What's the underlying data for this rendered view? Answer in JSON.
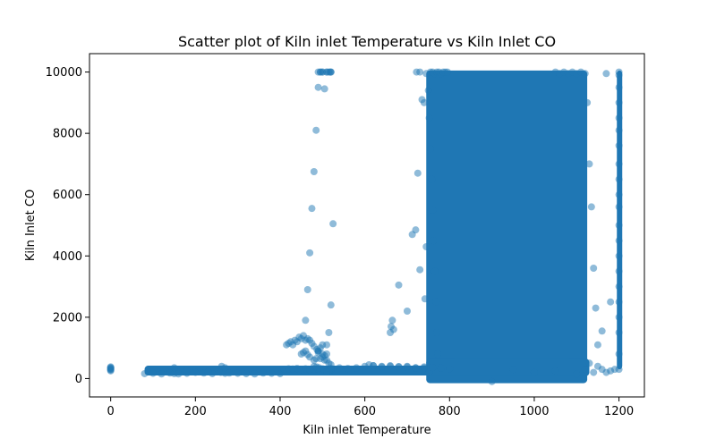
{
  "chart_data": {
    "type": "scatter",
    "title": "Scatter plot of Kiln inlet Temperature vs Kiln Inlet CO",
    "xlabel": "Kiln inlet Temperature",
    "ylabel": "Kiln Inlet CO",
    "xlim": [
      -50,
      1260
    ],
    "ylim": [
      -600,
      10600
    ],
    "xticks": [
      0,
      200,
      400,
      600,
      800,
      1000,
      1200
    ],
    "yticks": [
      0,
      2000,
      4000,
      6000,
      8000,
      10000
    ],
    "xtick_labels": [
      "0",
      "200",
      "400",
      "600",
      "800",
      "1000",
      "1200"
    ],
    "ytick_labels": [
      "0",
      "2000",
      "4000",
      "6000",
      "8000",
      "10000"
    ],
    "grid": false,
    "legend": "none",
    "color": "#1f77b4",
    "alpha": 0.5,
    "series": [
      {
        "x": [
          0,
          0,
          0,
          0,
          0,
          0,
          0,
          80,
          100,
          120,
          140,
          150,
          160,
          180,
          200,
          220,
          240,
          260,
          270,
          280,
          300,
          320,
          340,
          360,
          380,
          400,
          410,
          420,
          430,
          440,
          450,
          460,
          470,
          480,
          490,
          500,
          520,
          540,
          560,
          580,
          600,
          620,
          640,
          660,
          680,
          700,
          720,
          740,
          150,
          180,
          230,
          262,
          270,
          415,
          420,
          425,
          430,
          435,
          440,
          445,
          450,
          455,
          460,
          465,
          450,
          455,
          460,
          465,
          470,
          480,
          485,
          490,
          495,
          500,
          505,
          510,
          460,
          465,
          470,
          475,
          480,
          485,
          490,
          495,
          500,
          505,
          510,
          515,
          520,
          470,
          475,
          480,
          487,
          490,
          495,
          500,
          505,
          510,
          515,
          520,
          525,
          490,
          495,
          500,
          510,
          518,
          520,
          490,
          500,
          510,
          515,
          520,
          480,
          486,
          492,
          518,
          520,
          515,
          510,
          610,
          620,
          640,
          660,
          680,
          700,
          720,
          740,
          760,
          780,
          800,
          660,
          662,
          665,
          668,
          680,
          700,
          712,
          720,
          725,
          730,
          735,
          740,
          742,
          745,
          722,
          730,
          745,
          755,
          760,
          765,
          770,
          775,
          780,
          785,
          790,
          795,
          750,
          752,
          755,
          758,
          760,
          762,
          765,
          768,
          770,
          772,
          1050,
          1060,
          1070,
          1080,
          1090,
          1100,
          1110,
          1120,
          1125,
          1130,
          1135,
          1140,
          1145,
          1150,
          1160,
          1170,
          1180,
          1200,
          1200,
          1200,
          1200,
          1200,
          1200,
          1200,
          1200,
          1200,
          1200,
          1200,
          1200,
          1200,
          1200,
          1200,
          1200,
          1200,
          1200,
          1200,
          1200,
          1200,
          900,
          950,
          1000,
          1050,
          1100,
          1120,
          1130,
          1140,
          1150,
          1160,
          1170,
          1180,
          1190
        ],
        "y": [
          250,
          280,
          300,
          320,
          340,
          360,
          380,
          160,
          170,
          150,
          180,
          160,
          150,
          170,
          200,
          180,
          160,
          200,
          170,
          180,
          170,
          160,
          150,
          180,
          170,
          160,
          300,
          320,
          310,
          330,
          300,
          320,
          280,
          300,
          310,
          320,
          330,
          350,
          330,
          350,
          400,
          420,
          380,
          400,
          390,
          380,
          350,
          350,
          350,
          250,
          220,
          400,
          350,
          1100,
          1150,
          1200,
          1100,
          1250,
          1200,
          1350,
          1300,
          1400,
          1250,
          1300,
          800,
          850,
          900,
          780,
          700,
          600,
          650,
          900,
          1000,
          1100,
          750,
          800,
          1900,
          2900,
          4100,
          5550,
          6750,
          8100,
          9500,
          10000,
          10000,
          9450,
          10000,
          10000,
          10000,
          1250,
          1150,
          1050,
          950,
          850,
          650,
          700,
          600,
          1100,
          1500,
          2400,
          5050,
          10000,
          10000,
          10000,
          10000,
          10000,
          10000,
          900,
          800,
          600,
          500,
          450,
          400,
          380,
          350,
          300,
          280,
          250,
          220,
          450,
          420,
          400,
          420,
          380,
          400,
          350,
          380,
          360,
          340,
          320,
          1500,
          1700,
          1900,
          1600,
          3050,
          2200,
          4700,
          4850,
          6700,
          3550,
          9100,
          9000,
          2600,
          4300,
          10000,
          10000,
          9950,
          10000,
          10000,
          9950,
          10000,
          10000,
          9950,
          10000,
          10000,
          10000,
          9400,
          8500,
          7500,
          6500,
          5500,
          4500,
          3500,
          2500,
          1500,
          800,
          10000,
          9950,
          10000,
          9950,
          10000,
          9950,
          10000,
          9950,
          9000,
          7000,
          5600,
          3600,
          2300,
          1100,
          1550,
          9950,
          2500,
          10000,
          9900,
          9500,
          9000,
          8500,
          8100,
          7600,
          7000,
          6500,
          6000,
          5600,
          5000,
          4500,
          4000,
          3500,
          3000,
          2500,
          2000,
          1500,
          800,
          300,
          -100,
          300,
          200,
          250,
          150,
          300,
          500,
          200,
          400,
          300,
          200,
          250,
          300
        ]
      }
    ],
    "dense_regions": [
      {
        "x_range": [
          745,
          1125
        ],
        "y_range": [
          -150,
          10050
        ]
      },
      {
        "x_range": [
          745,
          1130
        ],
        "y_range": [
          80,
          650
        ]
      },
      {
        "x_range": [
          80,
          760
        ],
        "y_range": [
          100,
          420
        ]
      },
      {
        "x_range": [
          1195,
          1205
        ],
        "y_range": [
          300,
          10050
        ]
      }
    ]
  }
}
